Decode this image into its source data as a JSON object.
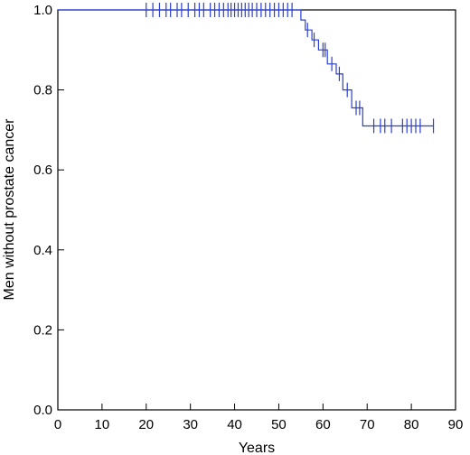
{
  "chart_data": {
    "type": "line",
    "subtype": "kaplan-meier-step",
    "xlabel": "Years",
    "ylabel": "Men without prostate cancer",
    "xlim": [
      0,
      90
    ],
    "ylim": [
      0,
      1
    ],
    "x_ticks": [
      0,
      10,
      20,
      30,
      40,
      50,
      60,
      70,
      80,
      90
    ],
    "y_ticks": [
      0,
      0.2,
      0.4,
      0.6,
      0.8,
      1
    ],
    "y_tick_labels": [
      "0.0",
      "0.2",
      "0.4",
      "0.6",
      "0.8",
      "1.0"
    ],
    "grid": false,
    "series": [
      {
        "color": "#2b3fd6",
        "step": [
          [
            0,
            1.0
          ],
          [
            55,
            1.0
          ],
          [
            55,
            0.975
          ],
          [
            56,
            0.975
          ],
          [
            56,
            0.95
          ],
          [
            57.5,
            0.95
          ],
          [
            57.5,
            0.925
          ],
          [
            59,
            0.925
          ],
          [
            59,
            0.9
          ],
          [
            61,
            0.9
          ],
          [
            61,
            0.865
          ],
          [
            63,
            0.865
          ],
          [
            63,
            0.84
          ],
          [
            64.5,
            0.84
          ],
          [
            64.5,
            0.8
          ],
          [
            66.5,
            0.8
          ],
          [
            66.5,
            0.755
          ],
          [
            69,
            0.755
          ],
          [
            69,
            0.71
          ],
          [
            85,
            0.71
          ]
        ],
        "censor_marks": [
          [
            20,
            1.0
          ],
          [
            21.5,
            1.0
          ],
          [
            23,
            1.0
          ],
          [
            24.5,
            1.0
          ],
          [
            25.5,
            1.0
          ],
          [
            27,
            1.0
          ],
          [
            28,
            1.0
          ],
          [
            29.5,
            1.0
          ],
          [
            31,
            1.0
          ],
          [
            32,
            1.0
          ],
          [
            33,
            1.0
          ],
          [
            34.5,
            1.0
          ],
          [
            35.5,
            1.0
          ],
          [
            36.5,
            1.0
          ],
          [
            37.5,
            1.0
          ],
          [
            38.5,
            1.0
          ],
          [
            39.2,
            1.0
          ],
          [
            40,
            1.0
          ],
          [
            40.8,
            1.0
          ],
          [
            41.6,
            1.0
          ],
          [
            42.4,
            1.0
          ],
          [
            43.2,
            1.0
          ],
          [
            44,
            1.0
          ],
          [
            45,
            1.0
          ],
          [
            46,
            1.0
          ],
          [
            47,
            1.0
          ],
          [
            48,
            1.0
          ],
          [
            49,
            1.0
          ],
          [
            50,
            1.0
          ],
          [
            51,
            1.0
          ],
          [
            52,
            1.0
          ],
          [
            53,
            1.0
          ],
          [
            56.5,
            0.95
          ],
          [
            58,
            0.925
          ],
          [
            60,
            0.9
          ],
          [
            60.5,
            0.9
          ],
          [
            62,
            0.865
          ],
          [
            63.7,
            0.84
          ],
          [
            65.5,
            0.8
          ],
          [
            67.5,
            0.755
          ],
          [
            68.3,
            0.755
          ],
          [
            71.5,
            0.71
          ],
          [
            73,
            0.71
          ],
          [
            74,
            0.71
          ],
          [
            75.5,
            0.71
          ],
          [
            78,
            0.71
          ],
          [
            79,
            0.71
          ],
          [
            80,
            0.71
          ],
          [
            81,
            0.71
          ],
          [
            82,
            0.71
          ],
          [
            85,
            0.71
          ]
        ]
      }
    ]
  }
}
